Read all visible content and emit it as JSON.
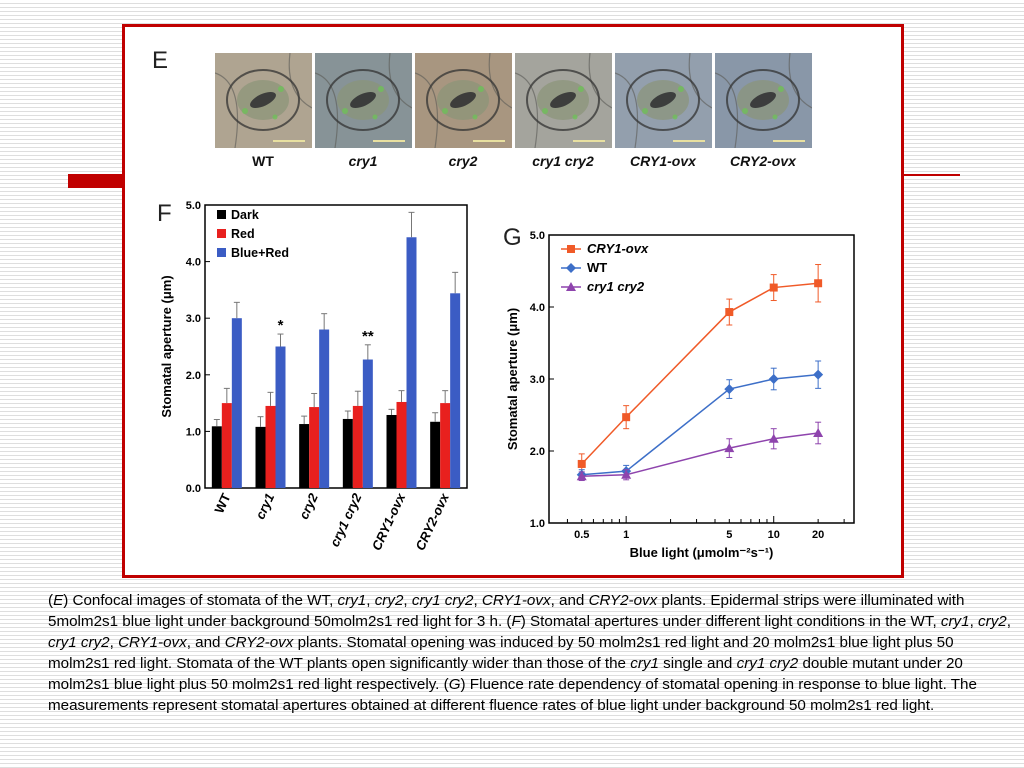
{
  "panel_e": {
    "letter": "E",
    "images": [
      {
        "label": "WT",
        "italic": false,
        "tint": "#a89a86",
        "cell": "#b4ad9a"
      },
      {
        "label": "cry1",
        "italic": true,
        "tint": "#7d8a90",
        "cell": "#8f9a9c"
      },
      {
        "label": "cry2",
        "italic": true,
        "tint": "#9e8a74",
        "cell": "#b0a08a"
      },
      {
        "label": "cry1 cry2",
        "italic": true,
        "tint": "#9a9a92",
        "cell": "#adada5"
      },
      {
        "label": "CRY1-ovx",
        "italic": true,
        "tint": "#8a98a6",
        "cell": "#9aa6b2"
      },
      {
        "label": "CRY2-ovx",
        "italic": true,
        "tint": "#7e8ca0",
        "cell": "#92a0ae"
      }
    ]
  },
  "chart_data": [
    {
      "panel": "F",
      "type": "bar",
      "ylabel": "Stomatal aperture (μm)",
      "ylim": [
        0,
        5
      ],
      "yticks": [
        "0.0",
        "1.0",
        "2.0",
        "3.0",
        "4.0",
        "5.0"
      ],
      "categories": [
        "WT",
        "cry1",
        "cry2",
        "cry1 cry2",
        "CRY1-ovx",
        "CRY2-ovx"
      ],
      "series": [
        {
          "name": "Dark",
          "color": "#000000",
          "values": [
            1.09,
            1.08,
            1.13,
            1.22,
            1.29,
            1.17
          ],
          "errors": [
            0.12,
            0.18,
            0.14,
            0.14,
            0.1,
            0.16
          ]
        },
        {
          "name": "Red",
          "color": "#e8201e",
          "values": [
            1.5,
            1.45,
            1.43,
            1.45,
            1.52,
            1.5
          ],
          "errors": [
            0.26,
            0.24,
            0.24,
            0.26,
            0.2,
            0.22
          ]
        },
        {
          "name": "Blue+Red",
          "color": "#3b5cc4",
          "values": [
            3.0,
            2.5,
            2.8,
            2.27,
            4.43,
            3.44
          ],
          "errors": [
            0.28,
            0.22,
            0.28,
            0.26,
            0.44,
            0.37
          ]
        }
      ],
      "annotations": [
        {
          "category": "cry1",
          "text": "*"
        },
        {
          "category": "cry1 cry2",
          "text": "**"
        }
      ],
      "legend": "top-left"
    },
    {
      "panel": "G",
      "type": "line",
      "xlabel": "Blue light (μmolm⁻²s⁻¹)",
      "ylabel": "Stomatal aperture (μm)",
      "xscale": "log",
      "xticks": [
        "0.5",
        "1",
        "5",
        "10",
        "20"
      ],
      "xlim": [
        0.3,
        35
      ],
      "ylim": [
        1,
        5
      ],
      "yticks": [
        "1.0",
        "2.0",
        "3.0",
        "4.0",
        "5.0"
      ],
      "x": [
        0.5,
        1,
        5,
        10,
        20
      ],
      "series": [
        {
          "name": "CRY1-ovx",
          "color": "#f05a28",
          "marker": "square",
          "values": [
            1.82,
            2.47,
            3.93,
            4.27,
            4.33
          ],
          "errors": [
            0.14,
            0.16,
            0.18,
            0.18,
            0.26
          ]
        },
        {
          "name": "WT",
          "color": "#3d6fc8",
          "marker": "diamond",
          "values": [
            1.67,
            1.72,
            2.86,
            3.0,
            3.06
          ],
          "errors": [
            0.07,
            0.08,
            0.13,
            0.15,
            0.19
          ]
        },
        {
          "name": "cry1 cry2",
          "color": "#8e44ad",
          "marker": "triangle",
          "values": [
            1.65,
            1.67,
            2.04,
            2.17,
            2.25
          ],
          "errors": [
            0.06,
            0.07,
            0.13,
            0.14,
            0.15
          ]
        }
      ],
      "legend": "top-left"
    }
  ],
  "caption": [
    {
      "t": "(",
      "i": false
    },
    {
      "t": "E",
      "i": true
    },
    {
      "t": ") Confocal images of stomata of the WT, ",
      "i": false
    },
    {
      "t": "cry1",
      "i": true
    },
    {
      "t": ", ",
      "i": false
    },
    {
      "t": "cry2",
      "i": true
    },
    {
      "t": ", ",
      "i": false
    },
    {
      "t": "cry1 cry2",
      "i": true
    },
    {
      "t": ", ",
      "i": false
    },
    {
      "t": "CRY1-ovx",
      "i": true
    },
    {
      "t": ", and ",
      "i": false
    },
    {
      "t": "CRY2-ovx",
      "i": true
    },
    {
      "t": " plants. Epidermal strips were illuminated with 5molm2s1 blue light under background 50molm2s1 red light for 3 h. (",
      "i": false
    },
    {
      "t": "F",
      "i": true
    },
    {
      "t": ") Stomatal apertures under different light conditions in the WT, ",
      "i": false
    },
    {
      "t": "cry1",
      "i": true
    },
    {
      "t": ", ",
      "i": false
    },
    {
      "t": "cry2",
      "i": true
    },
    {
      "t": ", ",
      "i": false
    },
    {
      "t": "cry1 cry2",
      "i": true
    },
    {
      "t": ", ",
      "i": false
    },
    {
      "t": "CRY1-ovx",
      "i": true
    },
    {
      "t": ", and ",
      "i": false
    },
    {
      "t": "CRY2-ovx",
      "i": true
    },
    {
      "t": " plants. Stomatal opening was induced by 50 molm2s1 red light and 20 molm2s1 blue light plus 50 molm2s1 red light. Stomata of the WT plants open significantly wider than those of the ",
      "i": false
    },
    {
      "t": "cry1",
      "i": true
    },
    {
      "t": " single and ",
      "i": false
    },
    {
      "t": "cry1 cry2",
      "i": true
    },
    {
      "t": " double mutant under 20 molm2s1 blue light plus 50 molm2s1 red light respectively. (",
      "i": false
    },
    {
      "t": "G",
      "i": true
    },
    {
      "t": ") Fluence rate dependency of stomatal opening in response to blue light. The measurements represent stomatal apertures obtained at different fluence rates of blue light under background 50 molm2s1 red light.",
      "i": false
    }
  ]
}
